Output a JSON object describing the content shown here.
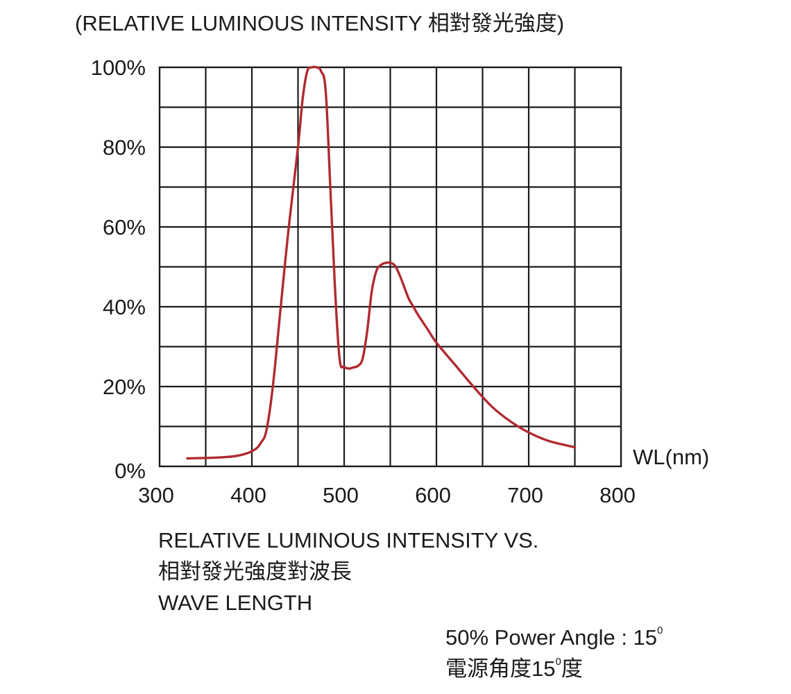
{
  "chart_data": {
    "type": "line",
    "ylabel": "(RELATIVE LUMINOUS INTENSITY 相對發光強度)",
    "xlabel": "WL(nm)",
    "xlim": [
      300,
      800
    ],
    "ylim": [
      0,
      100
    ],
    "x_ticks": [
      "300",
      "400",
      "500",
      "600",
      "700",
      "800"
    ],
    "y_ticks": [
      "0%",
      "20%",
      "40%",
      "60%",
      "80%",
      "100%"
    ],
    "grid": true,
    "series_color": "#b02a30",
    "series": [
      {
        "x": [
          330,
          360,
          380,
          395,
          405,
          410,
          415,
          420,
          425,
          430,
          440,
          450,
          455,
          460,
          465,
          470,
          475,
          480,
          485,
          490,
          495,
          500,
          505,
          510,
          515,
          520,
          525,
          530,
          535,
          540,
          545,
          550,
          555,
          560,
          565,
          570,
          575,
          580,
          590,
          600,
          620,
          640,
          660,
          680,
          700,
          720,
          740,
          750
        ],
        "y": [
          2,
          2.2,
          2.5,
          3.3,
          4.5,
          6,
          8.3,
          15,
          25,
          37,
          60,
          80,
          92,
          99,
          100,
          100,
          99,
          94,
          70,
          45,
          27,
          25,
          24.5,
          24.8,
          25.2,
          27,
          34,
          44,
          49,
          50.5,
          51,
          51,
          50.3,
          48,
          45,
          42,
          40,
          38,
          34.5,
          31,
          25.5,
          20,
          15,
          11.3,
          8.5,
          6.5,
          5.3,
          4.8
        ]
      }
    ],
    "caption_lines": [
      "RELATIVE LUMINOUS INTENSITY VS.",
      "相對發光強度對波長",
      "WAVE LENGTH"
    ]
  },
  "note": {
    "line1_text": "50% Power Angle : 15",
    "line1_sup": "0",
    "line2_prefix": "電源角度15",
    "line2_sup": "0",
    "line2_suffix": "度"
  }
}
